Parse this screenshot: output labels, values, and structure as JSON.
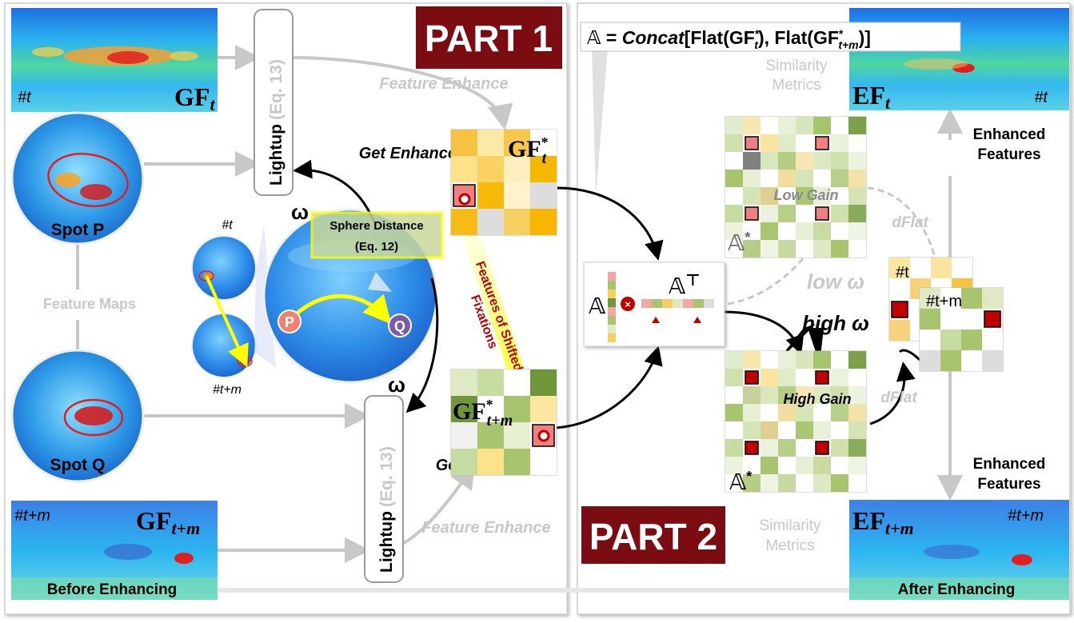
{
  "part1": {
    "title": "PART 1"
  },
  "part2": {
    "title": "PART 2"
  },
  "formula": {
    "lhs": "𝔸",
    "eq": " = ",
    "op": "Concat",
    "rest": "[Flat(GF",
    "rest_star": "*",
    "rest_sub_t": "t",
    "mid": "), Flat(GF",
    "rest_sub_tm": "t+m",
    "end": ")]"
  },
  "gf_t": {
    "base": "GF",
    "sub": "t",
    "frame_tag": "#t"
  },
  "gf_tm": {
    "base": "GF",
    "sub": "t+m",
    "frame_tag": "#t+m",
    "caption": "Before Enhancing"
  },
  "ef_t": {
    "base": "EF",
    "sub": "t",
    "frame_tag": "#t"
  },
  "ef_tm": {
    "base": "EF",
    "sub": "t+m",
    "frame_tag": "#t+m",
    "caption": "After Enhancing"
  },
  "lightup": {
    "label": "Lightup",
    "eq": "(Eq. 13)"
  },
  "feature_enhance": "Feature Enhance",
  "get_enhanced": "Get Enhanced",
  "spot_p": "Spot P",
  "spot_q": "Spot Q",
  "feature_maps": "Feature Maps",
  "sphere_distance": {
    "title": "Sphere Distance",
    "eq": "(Eq. 12)"
  },
  "omega": "ω",
  "tag_t": "#t",
  "tag_tm": "#t+m",
  "point_p": "P",
  "point_q": "Q",
  "shifted": {
    "line1": "Features of Shifted",
    "line2": "Fixations"
  },
  "gfstar_t": {
    "base": "GF",
    "star": "*",
    "sub": "t"
  },
  "gfstar_tm": {
    "base": "GF",
    "star": "*",
    "sub": "t+m"
  },
  "a_symbol": "𝔸",
  "a_transpose": "𝔸",
  "a_transpose_sup": "⊤",
  "a_star": {
    "base": "𝔸",
    "star": "*"
  },
  "low_gain": "Low Gain",
  "high_gain": "High Gain",
  "low_omega": "low ω",
  "high_omega": "high ω",
  "similarity": {
    "line1": "Similarity",
    "line2": "Metrics"
  },
  "enhanced_features": {
    "line1": "Enhanced",
    "line2": "Features"
  },
  "dflat": "dFlat",
  "stack_t": "#t",
  "stack_tm": "#t+m",
  "colors": {
    "part_bg": "#7b0d12",
    "sel_red": "#c00000",
    "sel_pink": "#f4a6a6",
    "yellow": "#ffff00",
    "gray_text": "#c8c8c8"
  },
  "grids": {
    "gfstar_t": [
      [
        "#f5c242",
        "#fbe9a8",
        "#f7c64b",
        "#ffffff"
      ],
      [
        "#fce38a",
        "#f9d262",
        "#fbeec0",
        "#f5b800"
      ],
      [
        "#f08080",
        "#f7b90a",
        "#fff2cc",
        "#dddddd"
      ],
      [
        "#f6bb19",
        "#dddddd",
        "#f5d060",
        "#f7b500"
      ]
    ],
    "gfstar_tm": [
      [
        "#dfe9c4",
        "#c8dca0",
        "#ffffff",
        "#6f963a"
      ],
      [
        "#6f963a",
        "#ffffff",
        "#a6c46c",
        "#fce7a0"
      ],
      [
        "#f0f0f0",
        "#a8c46f",
        "#e6efcf",
        "#f08080"
      ],
      [
        "#c6dba0",
        "#fce38a",
        "#a8c46f",
        "#ffffff"
      ]
    ],
    "a_star_low": [
      [
        "#e2ecd0",
        "#f7e8b0",
        "#ffffff",
        "#e8f0d8",
        "#d7e6bb",
        "#a6c46c",
        "#ffffff",
        "#7ba14a"
      ],
      [
        "#cfe0ac",
        "#f08080",
        "#fbe3a0",
        "#e0ecc8",
        "#ffffff",
        "#f08080",
        "#eaf2da",
        "#ffffff"
      ],
      [
        "#ffffff",
        "#808080",
        "#d9e7bd",
        "#b4cc84",
        "#f7e7b5",
        "#dce9c2",
        "#cfdfae",
        "#ecf3df"
      ],
      [
        "#a8c46f",
        "#e6efd1",
        "#ffffff",
        "#f3dca0",
        "#d6e5b8",
        "#ffffff",
        "#b7cf88",
        "#f5e2a8"
      ],
      [
        "#ffffff",
        "#d4e4b4",
        "#e0d090",
        "#ffffff",
        "#a9c672",
        "#e9f0d9",
        "#ffffff",
        "#d4e4b4"
      ],
      [
        "#c6dba0",
        "#f08080",
        "#eaf1dc",
        "#b8cf89",
        "#ffffff",
        "#f08080",
        "#cfe0ab",
        "#8aab58"
      ],
      [
        "#ebf2de",
        "#ffffff",
        "#a8c46f",
        "#ffffff",
        "#e7efd5",
        "#c8dca2",
        "#ffffff",
        "#eef4e2"
      ],
      [
        "#ffffff",
        "#b6cd86",
        "#eef4e2",
        "#c7d9a0",
        "#ffffff",
        "#dce9c4",
        "#a8c46f",
        "#ffffff"
      ]
    ],
    "a_star_high": [
      [
        "#e2ecd0",
        "#f7e8b0",
        "#ffffff",
        "#e8f0d8",
        "#d7e6bb",
        "#a6c46c",
        "#ffffff",
        "#7ba14a"
      ],
      [
        "#cfe0ac",
        "#c00000",
        "#fbe3a0",
        "#e0ecc8",
        "#ffffff",
        "#c00000",
        "#eaf2da",
        "#ffffff"
      ],
      [
        "#ffffff",
        "#c9cf9b",
        "#d9e7bd",
        "#b4cc84",
        "#f7e7b5",
        "#dce9c2",
        "#cfdfae",
        "#ecf3df"
      ],
      [
        "#a8c46f",
        "#e6efd1",
        "#ffffff",
        "#f3dca0",
        "#d6e5b8",
        "#ffffff",
        "#b7cf88",
        "#f5e2a8"
      ],
      [
        "#ffffff",
        "#d4e4b4",
        "#e0d090",
        "#ffffff",
        "#a9c672",
        "#e9f0d9",
        "#ffffff",
        "#d4e4b4"
      ],
      [
        "#c6dba0",
        "#c00000",
        "#eaf1dc",
        "#b8cf89",
        "#ffffff",
        "#c00000",
        "#cfe0ab",
        "#8aab58"
      ],
      [
        "#ebf2de",
        "#ffffff",
        "#a8c46f",
        "#ffffff",
        "#e7efd5",
        "#c8dca2",
        "#ffffff",
        "#eef4e2"
      ],
      [
        "#ffffff",
        "#b6cd86",
        "#eef4e2",
        "#c7d9a0",
        "#ffffff",
        "#dce9c4",
        "#a8c46f",
        "#ffffff"
      ]
    ],
    "stack_t": [
      [
        "#fce7a0",
        "#ffffff",
        "#fbe3a0",
        "#ffffff"
      ],
      [
        "#ffffff",
        "#f6d27a",
        "#ffffff",
        "#f5c242"
      ],
      [
        "#c00000",
        "#ffffff",
        "#fbeec0",
        "#ffffff"
      ],
      [
        "#f6d27a",
        "#ffffff",
        "#fce38a",
        "#ffffff"
      ]
    ],
    "stack_tm": [
      [
        "#dfe9c4",
        "#ffffff",
        "#a8c46f",
        "#dfe9c4"
      ],
      [
        "#a8c46f",
        "#ffffff",
        "#ffffff",
        "#c00000"
      ],
      [
        "#ffffff",
        "#c6dba0",
        "#a8c46f",
        "#ffffff"
      ],
      [
        "#dddddd",
        "#a8c46f",
        "#ffffff",
        "#dddddd"
      ]
    ],
    "a_col": [
      "#f4a6a6",
      "#a8c46f",
      "#f5d060",
      "#6f963a",
      "#f4a6a6",
      "#a8c46f",
      "#dfe9c4",
      "#f5d060"
    ],
    "a_row": [
      "#f4a6a6",
      "#a8c46f",
      "#f5d060",
      "#dfe9c4",
      "#f4a6a6",
      "#a8c46f",
      "#dddddd"
    ]
  }
}
